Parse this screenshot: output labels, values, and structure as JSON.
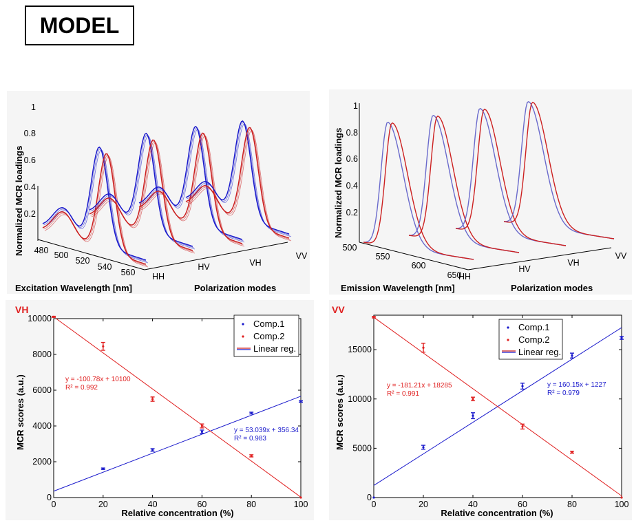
{
  "header": {
    "title": "MODEL"
  },
  "chart_data": [
    {
      "type": "line",
      "id": "excitation-loadings",
      "ylabel": "Normalized MCR loadings",
      "xlabel": "Excitation Wavelength [nm]",
      "zlabel": "Polarization modes",
      "y_ticks": [
        "1",
        "0.8",
        "0.6",
        "0.4",
        "0.2"
      ],
      "x_ticks": [
        "480",
        "500",
        "520",
        "540",
        "560"
      ],
      "z_ticks": [
        "HH",
        "HV",
        "VH",
        "VV"
      ],
      "series": [
        {
          "name": "Comp.1",
          "color": "#1a1acc"
        },
        {
          "name": "Comp.2",
          "color": "#cc2020"
        }
      ]
    },
    {
      "type": "line",
      "id": "emission-loadings",
      "ylabel": "Normalized MCR loadings",
      "xlabel": "Emission Wavelength [nm]",
      "zlabel": "Polarization modes",
      "y_ticks": [
        "1",
        "0.8",
        "0.6",
        "0.4",
        "0.2"
      ],
      "x_ticks": [
        "500",
        "550",
        "600",
        "650"
      ],
      "z_ticks": [
        "HH",
        "HV",
        "VH",
        "VV"
      ],
      "series": [
        {
          "name": "Comp.1",
          "color": "#6a6acc"
        },
        {
          "name": "Comp.2",
          "color": "#cc2020"
        }
      ]
    },
    {
      "type": "scatter",
      "id": "vh-scores",
      "panel_label": "VH",
      "xlabel": "Relative concentration (%)",
      "ylabel": "MCR scores (a.u.)",
      "xlim": [
        0,
        100
      ],
      "ylim": [
        0,
        10000
      ],
      "x_ticks": [
        "0",
        "20",
        "40",
        "60",
        "80",
        "100"
      ],
      "y_ticks": [
        "0",
        "2000",
        "4000",
        "6000",
        "8000",
        "10000"
      ],
      "legend": [
        "Comp.1",
        "Comp.2",
        "Linear reg."
      ],
      "series": [
        {
          "name": "Comp.1",
          "color": "#1a1acc",
          "x": [
            20,
            40,
            60,
            80,
            100
          ],
          "y": [
            1610,
            2660,
            3680,
            4720,
            5370
          ],
          "err": [
            40,
            70,
            90,
            50,
            40
          ],
          "fit": {
            "slope": 53.039,
            "intercept": 356.34
          },
          "eq": "y = 53.039x + 356.34",
          "r2": "R² = 0.983"
        },
        {
          "name": "Comp.2",
          "color": "#e02020",
          "x": [
            0,
            20,
            40,
            60,
            80,
            100
          ],
          "y": [
            10100,
            8450,
            5500,
            4000,
            2330,
            0
          ],
          "err": [
            30,
            220,
            120,
            110,
            60,
            0
          ],
          "fit": {
            "slope": -100.78,
            "intercept": 10100
          },
          "eq": "y = -100.78x + 10100",
          "r2": "R² = 0.992"
        }
      ]
    },
    {
      "type": "scatter",
      "id": "vv-scores",
      "panel_label": "VV",
      "xlabel": "Relative concentration (%)",
      "ylabel": "MCR scores (a.u.)",
      "xlim": [
        0,
        100
      ],
      "ylim": [
        0,
        18500
      ],
      "x_ticks": [
        "0",
        "20",
        "40",
        "60",
        "80",
        "100"
      ],
      "y_ticks": [
        "0",
        "5000",
        "10000",
        "15000"
      ],
      "legend": [
        "Comp.1",
        "Comp.2",
        "Linear reg."
      ],
      "series": [
        {
          "name": "Comp.1",
          "color": "#1a1acc",
          "x": [
            0,
            20,
            40,
            60,
            80,
            100
          ],
          "y": [
            0,
            5100,
            8300,
            11300,
            14400,
            16200
          ],
          "err": [
            0,
            200,
            300,
            300,
            250,
            150
          ],
          "fit": {
            "slope": 160.15,
            "intercept": 1227
          },
          "eq": "y = 160.15x + 1227",
          "r2": "R² = 0.979"
        },
        {
          "name": "Comp.2",
          "color": "#e02020",
          "x": [
            0,
            20,
            40,
            60,
            80,
            100
          ],
          "y": [
            18300,
            15200,
            10000,
            7200,
            4600,
            0
          ],
          "err": [
            80,
            450,
            180,
            250,
            100,
            0
          ],
          "fit": {
            "slope": -181.21,
            "intercept": 18285
          },
          "eq": "y = -181.21x + 18285",
          "r2": "R² = 0.991"
        }
      ]
    }
  ]
}
